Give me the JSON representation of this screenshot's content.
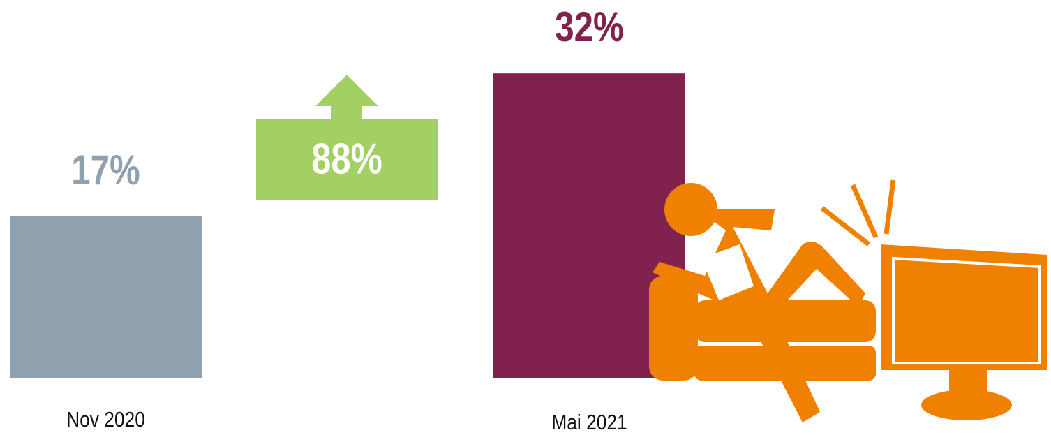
{
  "chart_data": {
    "type": "bar",
    "categories": [
      "Nov 2020",
      "Mai 2021"
    ],
    "values": [
      17,
      32
    ],
    "value_labels": [
      "17%",
      "32%"
    ],
    "colors": [
      "#8fa1ae",
      "#80214e"
    ],
    "annotation": "88%",
    "annotation_color": "#a2d063"
  }
}
